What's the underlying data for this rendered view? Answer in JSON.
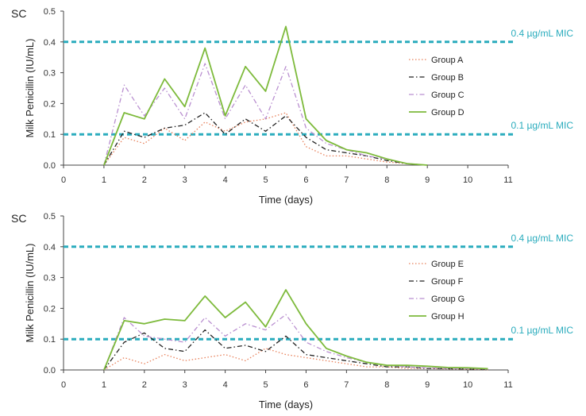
{
  "chart_data": [
    {
      "type": "line",
      "panel_label": "SC",
      "xlabel": "Time (days)",
      "ylabel": "Milk Penicillin (IU/mL)",
      "xlim": [
        0,
        11
      ],
      "ylim": [
        0,
        0.5
      ],
      "xticks": [
        0,
        1,
        2,
        3,
        4,
        5,
        6,
        7,
        8,
        9,
        10,
        11
      ],
      "xtick_labels": [
        "0",
        "1",
        "2",
        "3",
        "4",
        "5",
        "6",
        "7",
        "8",
        "9",
        "10",
        "11"
      ],
      "yticks": [
        0,
        0.1,
        0.2,
        0.3,
        0.4,
        0.5
      ],
      "ytick_labels": [
        "0.0",
        "0.1",
        "0.2",
        "0.3",
        "0.4",
        "0.5"
      ],
      "reference_lines": [
        {
          "y": 0.4,
          "label": "0.4 µg/mL MIC",
          "color": "#2aacbd"
        },
        {
          "y": 0.1,
          "label": "0.1 µg/mL MIC",
          "color": "#2aacbd"
        }
      ],
      "legend_position": "right",
      "series": [
        {
          "name": "Group A",
          "color": "#e8805a",
          "style": "dotted",
          "x": [
            1,
            1.5,
            2,
            2.5,
            3,
            3.5,
            4,
            4.5,
            5,
            5.5,
            6,
            6.5,
            7,
            7.5,
            8,
            8.5,
            9
          ],
          "y": [
            0,
            0.09,
            0.07,
            0.12,
            0.08,
            0.14,
            0.11,
            0.14,
            0.15,
            0.17,
            0.06,
            0.03,
            0.03,
            0.02,
            0.01,
            0.005,
            0
          ]
        },
        {
          "name": "Group B",
          "color": "#222222",
          "style": "dashdot",
          "x": [
            1,
            1.5,
            2,
            2.5,
            3,
            3.5,
            4,
            4.5,
            5,
            5.5,
            6,
            6.5,
            7,
            7.5,
            8,
            8.5,
            9
          ],
          "y": [
            0,
            0.11,
            0.09,
            0.12,
            0.13,
            0.17,
            0.1,
            0.15,
            0.11,
            0.16,
            0.09,
            0.05,
            0.04,
            0.03,
            0.015,
            0.005,
            0
          ]
        },
        {
          "name": "Group C",
          "color": "#b98fd0",
          "style": "dashdot",
          "x": [
            1,
            1.5,
            2,
            2.5,
            3,
            3.5,
            4,
            4.5,
            5,
            5.5,
            6,
            6.5,
            7,
            7.5,
            8,
            8.5,
            9
          ],
          "y": [
            0,
            0.26,
            0.16,
            0.25,
            0.15,
            0.33,
            0.15,
            0.26,
            0.15,
            0.32,
            0.12,
            0.07,
            0.05,
            0.03,
            0.02,
            0.005,
            0
          ]
        },
        {
          "name": "Group D",
          "color": "#7dba3b",
          "style": "solid",
          "x": [
            1,
            1.5,
            2,
            2.5,
            3,
            3.5,
            4,
            4.5,
            5,
            5.5,
            6,
            6.5,
            7,
            7.5,
            8,
            8.5,
            9
          ],
          "y": [
            0,
            0.17,
            0.15,
            0.28,
            0.19,
            0.38,
            0.16,
            0.32,
            0.24,
            0.45,
            0.15,
            0.08,
            0.05,
            0.04,
            0.02,
            0.005,
            0
          ]
        }
      ]
    },
    {
      "type": "line",
      "panel_label": "SC",
      "xlabel": "Time (days)",
      "ylabel": "Milk Penicillin (IU/mL)",
      "xlim": [
        0,
        11
      ],
      "ylim": [
        0,
        0.5
      ],
      "xticks": [
        0,
        1,
        2,
        3,
        4,
        5,
        6,
        7,
        8,
        9,
        10,
        11
      ],
      "xtick_labels": [
        "0",
        "1",
        "2",
        "3",
        "4",
        "5",
        "6",
        "7",
        "8",
        "9",
        "10",
        "11"
      ],
      "yticks": [
        0,
        0.1,
        0.2,
        0.3,
        0.4,
        0.5
      ],
      "ytick_labels": [
        "0.0",
        "0.1",
        "0.2",
        "0.3",
        "0.4",
        "0.5"
      ],
      "reference_lines": [
        {
          "y": 0.4,
          "label": "0.4 µg/mL MIC",
          "color": "#2aacbd"
        },
        {
          "y": 0.1,
          "label": "0.1 µg/mL MIC",
          "color": "#2aacbd"
        }
      ],
      "legend_position": "right",
      "series": [
        {
          "name": "Group E",
          "color": "#e8805a",
          "style": "dotted",
          "x": [
            1,
            1.5,
            2,
            2.5,
            3,
            3.5,
            4,
            4.5,
            5,
            5.5,
            6,
            6.5,
            7,
            7.5,
            8,
            8.5,
            9,
            9.5,
            10,
            10.5
          ],
          "y": [
            0,
            0.04,
            0.02,
            0.05,
            0.03,
            0.04,
            0.05,
            0.03,
            0.07,
            0.05,
            0.04,
            0.03,
            0.02,
            0.01,
            0.01,
            0.005,
            0.005,
            0.003,
            0.002,
            0.001
          ]
        },
        {
          "name": "Group F",
          "color": "#222222",
          "style": "dashdot",
          "x": [
            1,
            1.5,
            2,
            2.5,
            3,
            3.5,
            4,
            4.5,
            5,
            5.5,
            6,
            6.5,
            7,
            7.5,
            8,
            8.5,
            9,
            9.5,
            10,
            10.5
          ],
          "y": [
            0,
            0.09,
            0.12,
            0.07,
            0.06,
            0.13,
            0.07,
            0.08,
            0.06,
            0.11,
            0.05,
            0.04,
            0.03,
            0.02,
            0.01,
            0.01,
            0.005,
            0.004,
            0.003,
            0.002
          ]
        },
        {
          "name": "Group G",
          "color": "#b98fd0",
          "style": "dashdot",
          "x": [
            1,
            1.5,
            2,
            2.5,
            3,
            3.5,
            4,
            4.5,
            5,
            5.5,
            6,
            6.5,
            7,
            7.5,
            8,
            8.5,
            9,
            9.5,
            10,
            10.5
          ],
          "y": [
            0,
            0.17,
            0.11,
            0.1,
            0.09,
            0.17,
            0.11,
            0.15,
            0.13,
            0.18,
            0.09,
            0.06,
            0.04,
            0.025,
            0.015,
            0.01,
            0.007,
            0.005,
            0.004,
            0.003
          ]
        },
        {
          "name": "Group H",
          "color": "#7dba3b",
          "style": "solid",
          "x": [
            1,
            1.5,
            2,
            2.5,
            3,
            3.5,
            4,
            4.5,
            5,
            5.5,
            6,
            6.5,
            7,
            7.5,
            8,
            8.5,
            9,
            9.5,
            10,
            10.5
          ],
          "y": [
            0,
            0.16,
            0.15,
            0.165,
            0.16,
            0.24,
            0.17,
            0.22,
            0.14,
            0.26,
            0.15,
            0.07,
            0.045,
            0.025,
            0.015,
            0.015,
            0.012,
            0.008,
            0.007,
            0.004
          ]
        }
      ]
    }
  ]
}
